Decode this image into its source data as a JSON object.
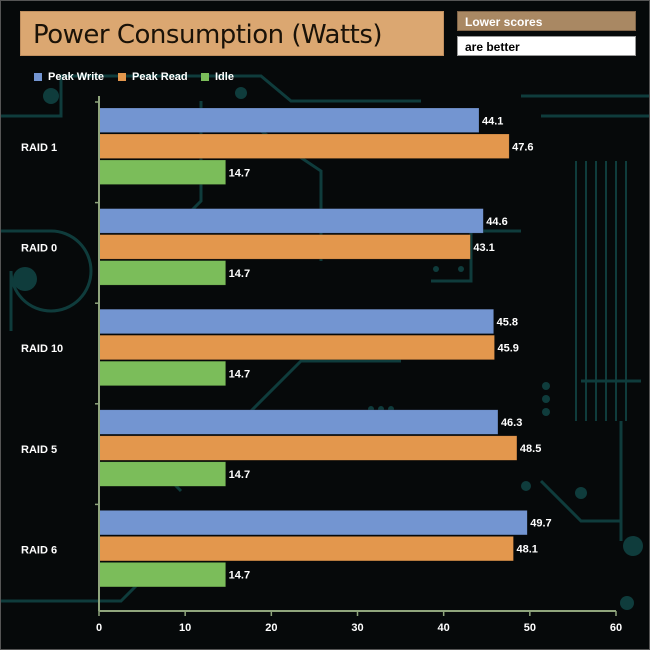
{
  "title": "Power Consumption (Watts)",
  "note": {
    "line1": "Lower scores",
    "line2": "are better"
  },
  "colors": {
    "background": "#06090a",
    "circuit": "#0f3c3c",
    "axis": "#8fa57c",
    "peak_write": "#7395d1",
    "peak_read": "#e3974d",
    "idle": "#7bbd5a"
  },
  "chart_data": {
    "type": "bar",
    "orientation": "horizontal",
    "categories": [
      "RAID 1",
      "RAID 0",
      "RAID 10",
      "RAID 5",
      "RAID 6"
    ],
    "series": [
      {
        "name": "Peak Write",
        "values": [
          44.1,
          44.6,
          45.8,
          46.3,
          49.7
        ],
        "color": "#7395d1"
      },
      {
        "name": "Peak Read",
        "values": [
          47.6,
          43.1,
          45.9,
          48.5,
          48.1
        ],
        "color": "#e3974d"
      },
      {
        "name": "Idle",
        "values": [
          14.7,
          14.7,
          14.7,
          14.7,
          14.7
        ],
        "color": "#7bbd5a"
      }
    ],
    "xlim": [
      0,
      60
    ],
    "xticks": [
      0,
      10,
      20,
      30,
      40,
      50,
      60
    ],
    "legend": "top-left",
    "grid": false
  }
}
